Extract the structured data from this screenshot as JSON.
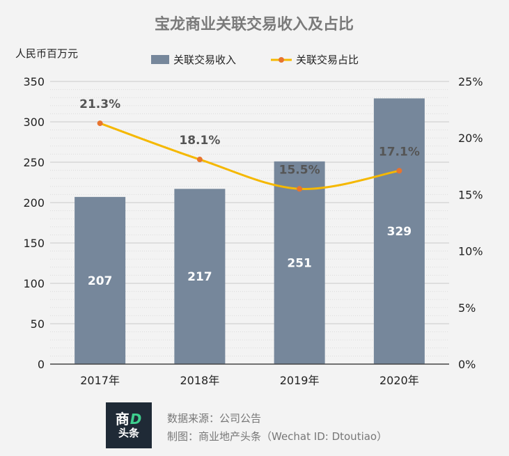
{
  "chart_data": {
    "type": "bar",
    "title": "宝龙商业关联交易收入及占比",
    "ylabel": "人民币百万元",
    "categories": [
      "2017年",
      "2018年",
      "2019年",
      "2020年"
    ],
    "series": [
      {
        "name": "关联交易收入",
        "type": "bar",
        "axis": "left",
        "color": "#76879b",
        "values": [
          207,
          217,
          251,
          329
        ]
      },
      {
        "name": "关联交易占比",
        "type": "line",
        "axis": "right",
        "color": "#f5b800",
        "marker_color": "#e8742e",
        "values": [
          21.3,
          18.1,
          15.5,
          17.1
        ]
      }
    ],
    "y_left": {
      "min": 0,
      "max": 350,
      "ticks": [
        0,
        50,
        100,
        150,
        200,
        250,
        300,
        350
      ]
    },
    "y_right": {
      "min": 0,
      "max": 25,
      "ticks": [
        "0%",
        "5%",
        "10%",
        "15%",
        "20%",
        "25%"
      ]
    },
    "bar_labels": [
      "207",
      "217",
      "251",
      "329"
    ],
    "line_labels": [
      "21.3%",
      "18.1%",
      "15.5%",
      "17.1%"
    ],
    "legend_position": "top-center",
    "grid": true
  },
  "footer": {
    "logo_top": "商",
    "logo_letter": "D",
    "logo_bottom": "头条",
    "source_line": "数据来源：公司公告",
    "credit_line": "制图：商业地产头条（Wechat ID: Dtoutiao）"
  }
}
